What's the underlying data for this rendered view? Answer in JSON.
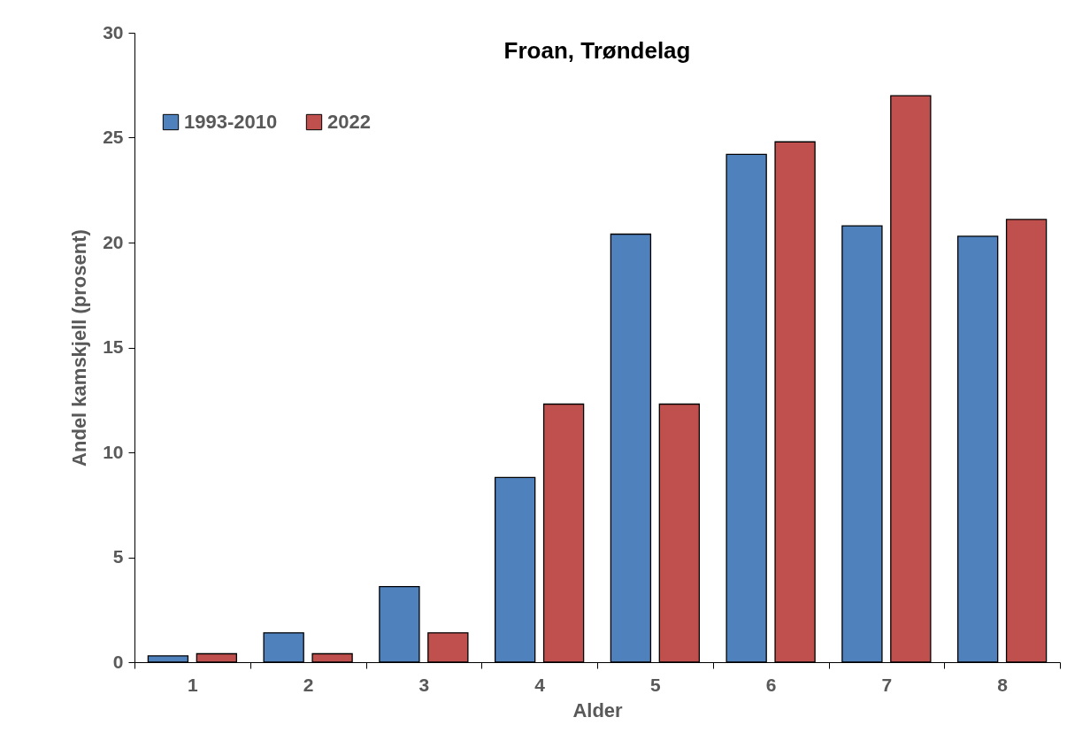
{
  "chart_data": {
    "type": "bar",
    "title": "Froan, Trøndelag",
    "xlabel": "Alder",
    "ylabel": "Andel kamskjell (prosent)",
    "categories": [
      "1",
      "2",
      "3",
      "4",
      "5",
      "6",
      "7",
      "8"
    ],
    "series": [
      {
        "name": "1993-2010",
        "color": "#4f81bd",
        "values": [
          0.3,
          1.4,
          3.6,
          8.8,
          20.4,
          24.2,
          20.8,
          20.3
        ]
      },
      {
        "name": "2022",
        "color": "#c0504d",
        "values": [
          0.4,
          0.4,
          1.4,
          12.3,
          12.3,
          24.8,
          27.0,
          21.1
        ]
      }
    ],
    "ylim": [
      0,
      30
    ],
    "yticks": [
      0,
      5,
      10,
      15,
      20,
      25,
      30
    ],
    "grid": false,
    "legend": "top left"
  }
}
